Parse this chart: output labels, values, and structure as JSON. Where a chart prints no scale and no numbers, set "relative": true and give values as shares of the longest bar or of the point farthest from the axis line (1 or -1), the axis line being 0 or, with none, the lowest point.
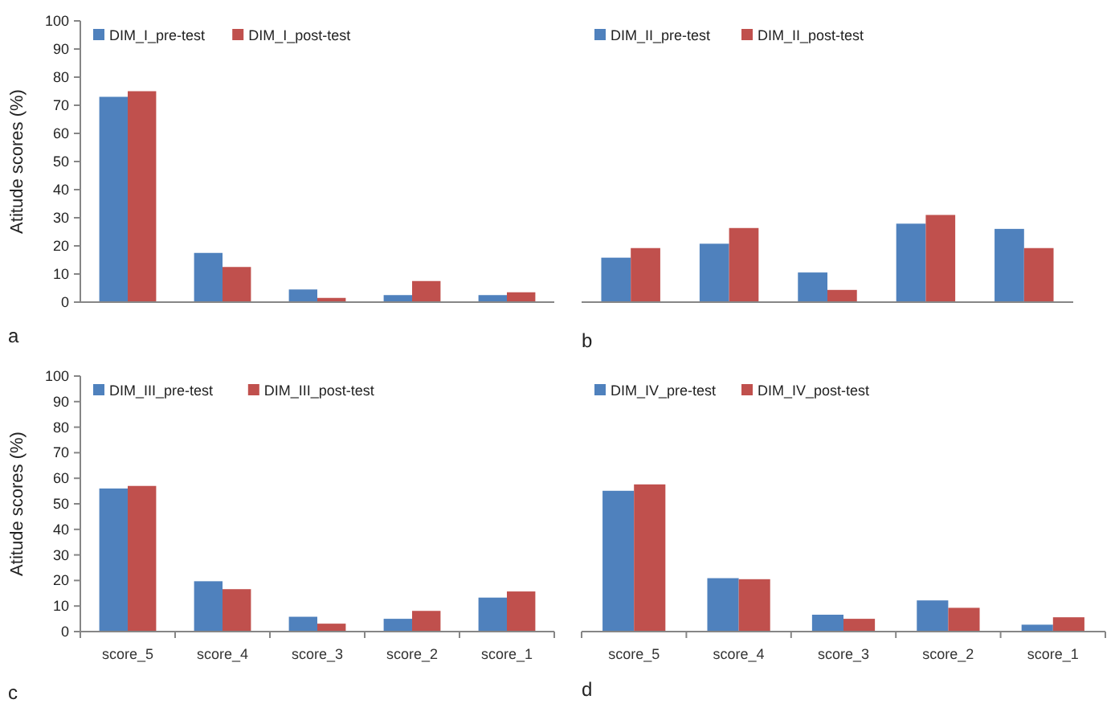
{
  "chart_data": [
    {
      "type": "bar",
      "categories": [
        null,
        null,
        null,
        null,
        null
      ],
      "ylabel": "Atitude scores (%)",
      "ylim": [
        0,
        100
      ],
      "yticks": [
        0,
        10,
        20,
        30,
        40,
        50,
        60,
        70,
        80,
        90,
        100
      ],
      "tick_labels": "y",
      "legend": "top left",
      "annotations": [
        "a"
      ],
      "series": [
        {
          "name": "DIM_I_pre-test",
          "color": "#4f81bd",
          "values": [
            73,
            17.5,
            4.5,
            2.5,
            2.5
          ]
        },
        {
          "name": "DIM_I_post-test",
          "color": "#c0504d",
          "values": [
            75,
            12.5,
            1.5,
            7.5,
            3.5
          ]
        }
      ]
    },
    {
      "type": "bar",
      "categories": [
        null,
        null,
        null,
        null,
        null
      ],
      "relative": true,
      "tick_labels": false,
      "legend": "top left",
      "annotations": [
        "b"
      ],
      "series": [
        {
          "name": "DIM_II_pre-test",
          "color": "#4f81bd",
          "values": [
            0.51,
            0.67,
            0.34,
            0.9,
            0.84
          ]
        },
        {
          "name": "DIM_II_post-test",
          "color": "#c0504d",
          "values": [
            0.62,
            0.85,
            0.14,
            1,
            0.62
          ]
        }
      ]
    },
    {
      "type": "bar",
      "categories": [
        "score_5",
        "score_4",
        "score_3",
        "score_2",
        "score_1"
      ],
      "ylabel": "Atitude scores (%)",
      "ylim": [
        0,
        100
      ],
      "yticks": [
        0,
        10,
        20,
        30,
        40,
        50,
        60,
        70,
        80,
        90,
        100
      ],
      "legend": "top left",
      "annotations": [
        "c"
      ],
      "series": [
        {
          "name": "DIM_III_pre-test",
          "color": "#4f81bd",
          "values": [
            56,
            19.7,
            5.8,
            5,
            13.3
          ]
        },
        {
          "name": "DIM_III_post-test",
          "color": "#c0504d",
          "values": [
            57,
            16.6,
            3.1,
            8.1,
            15.7
          ]
        }
      ]
    },
    {
      "type": "bar",
      "categories": [
        "score_5",
        "score_4",
        "score_3",
        "score_2",
        "score_1"
      ],
      "ylim": [
        0,
        100
      ],
      "tick_labels": "x",
      "legend": "top left",
      "annotations": [
        "d"
      ],
      "series": [
        {
          "name": "DIM_IV_pre-test",
          "color": "#4f81bd",
          "values": [
            55.1,
            20.9,
            6.6,
            12.2,
            2.7
          ]
        },
        {
          "name": "DIM_IV_post-test",
          "color": "#c0504d",
          "values": [
            57.6,
            20.5,
            5,
            9.3,
            5.6
          ]
        }
      ]
    }
  ]
}
